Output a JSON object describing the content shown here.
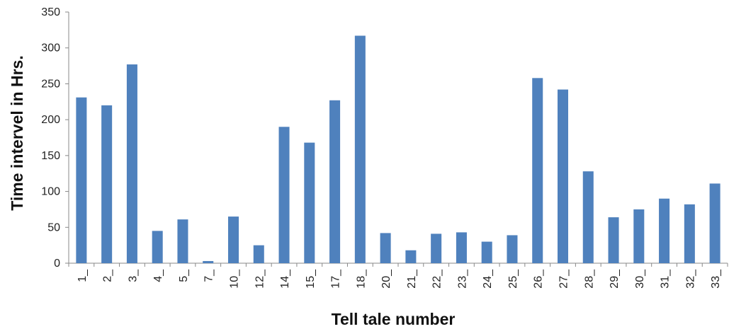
{
  "chart_data": {
    "type": "bar",
    "title": "",
    "xlabel": "Tell tale number",
    "ylabel": "Time intervel in Hrs.",
    "ylim": [
      0,
      350
    ],
    "yticks": [
      0,
      50,
      100,
      150,
      200,
      250,
      300,
      350
    ],
    "grid": false,
    "legend": "none",
    "bar_color": "#4f81bd",
    "categories": [
      "1_",
      "2_",
      "3_",
      "4_",
      "5_",
      "7_",
      "10_",
      "12_",
      "14_",
      "15_",
      "17_",
      "18_",
      "20_",
      "21_",
      "22_",
      "23_",
      "24_",
      "25_",
      "26_",
      "27_",
      "28_",
      "29_",
      "30_",
      "31_",
      "32_",
      "33_"
    ],
    "values": [
      231,
      220,
      277,
      45,
      61,
      3,
      65,
      25,
      190,
      168,
      227,
      317,
      42,
      18,
      41,
      43,
      30,
      39,
      258,
      242,
      128,
      64,
      75,
      90,
      82,
      111
    ]
  }
}
